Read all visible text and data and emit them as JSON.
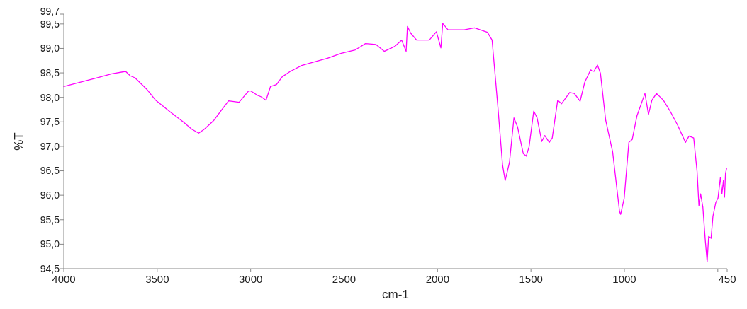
{
  "chart_data": {
    "type": "line",
    "xlabel": "cm-1",
    "ylabel": "%T",
    "xlim": [
      4000,
      450
    ],
    "ylim": [
      94.5,
      99.7
    ],
    "xticks": [
      4000,
      3500,
      3000,
      2500,
      2000,
      1500,
      1000,
      {
        "value": 500,
        "label": null
      },
      450
    ],
    "yticks": [
      {
        "value": 94.5,
        "label": "94,5"
      },
      {
        "value": 95,
        "label": "95,0"
      },
      {
        "value": 95.5,
        "label": "95,5"
      },
      {
        "value": 96,
        "label": "96,0"
      },
      {
        "value": 96.5,
        "label": "96,5"
      },
      {
        "value": 97,
        "label": "97,0"
      },
      {
        "value": 97.5,
        "label": "97,5"
      },
      {
        "value": 98,
        "label": "98,0"
      },
      {
        "value": 98.5,
        "label": "98,5"
      },
      {
        "value": 99,
        "label": "99,0"
      },
      {
        "value": 99.5,
        "label": "99,5"
      },
      {
        "value": 99.7,
        "label": "99,7"
      }
    ],
    "grid": false,
    "marker": "none",
    "line_style": "solid",
    "series": [
      {
        "color": "#ff00ff",
        "x": [
          4000,
          3892,
          3830,
          3743,
          3669,
          3644,
          3619,
          3557,
          3508,
          3433,
          3358,
          3315,
          3278,
          3248,
          3197,
          3148,
          3118,
          3062,
          3011,
          2999,
          2962,
          2943,
          2918,
          2894,
          2862,
          2831,
          2788,
          2727,
          2664,
          2589,
          2515,
          2440,
          2385,
          2329,
          2285,
          2229,
          2192,
          2168,
          2161,
          2143,
          2112,
          2044,
          2006,
          1982,
          1972,
          1944,
          1857,
          1802,
          1733,
          1708,
          1677,
          1652,
          1638,
          1615,
          1591,
          1572,
          1541,
          1525,
          1510,
          1485,
          1467,
          1442,
          1426,
          1402,
          1386,
          1357,
          1336,
          1293,
          1268,
          1237,
          1212,
          1181,
          1163,
          1144,
          1128,
          1100,
          1063,
          1026,
          1020,
          1001,
          976,
          958,
          933,
          890,
          871,
          853,
          828,
          791,
          754,
          716,
          673,
          654,
          629,
          611,
          601,
          592,
          580,
          567,
          557,
          549,
          536,
          526,
          511,
          499,
          486,
          478,
          470,
          464,
          459,
          453
        ],
        "values": [
          98.22,
          98.33,
          98.39,
          98.48,
          98.53,
          98.44,
          98.4,
          98.17,
          97.94,
          97.71,
          97.49,
          97.35,
          97.27,
          97.35,
          97.53,
          97.78,
          97.93,
          97.9,
          98.13,
          98.13,
          98.04,
          98.01,
          97.94,
          98.22,
          98.26,
          98.42,
          98.53,
          98.65,
          98.72,
          98.8,
          98.9,
          98.97,
          99.1,
          99.08,
          98.94,
          99.04,
          99.17,
          98.94,
          99.45,
          99.31,
          99.17,
          99.17,
          99.34,
          99.01,
          99.51,
          99.38,
          99.38,
          99.42,
          99.33,
          99.17,
          97.81,
          96.62,
          96.3,
          96.67,
          97.58,
          97.4,
          96.85,
          96.8,
          96.99,
          97.72,
          97.58,
          97.1,
          97.22,
          97.08,
          97.17,
          97.94,
          97.87,
          98.1,
          98.08,
          97.92,
          98.31,
          98.56,
          98.53,
          98.66,
          98.49,
          97.53,
          96.89,
          95.67,
          95.61,
          95.94,
          97.08,
          97.14,
          97.62,
          98.08,
          97.65,
          97.94,
          98.08,
          97.94,
          97.71,
          97.44,
          97.08,
          97.21,
          97.17,
          96.49,
          95.79,
          96.03,
          95.76,
          95.08,
          94.64,
          95.16,
          95.12,
          95.57,
          95.85,
          95.94,
          96.37,
          96.03,
          96.3,
          95.96,
          96.44,
          96.55
        ]
      }
    ]
  }
}
